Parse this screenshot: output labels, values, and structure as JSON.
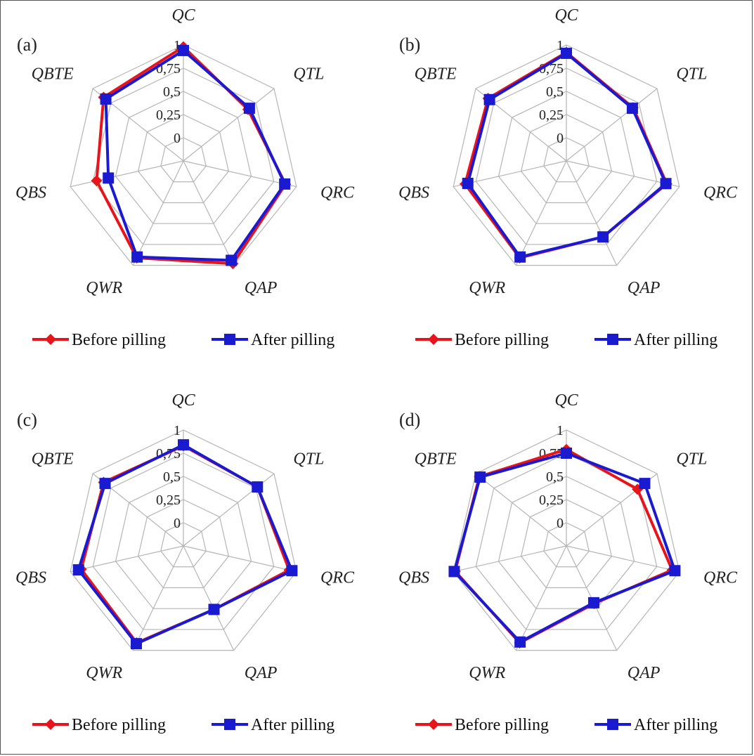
{
  "colors": {
    "before": "#e8141c",
    "after": "#1a1ad0",
    "grid": "#b5b5b5"
  },
  "chart_data": [
    {
      "type": "radar",
      "panel": "(a)",
      "categories": [
        "QC",
        "QTL",
        "QRC",
        "QAP",
        "QWR",
        "QBS",
        "QBTE"
      ],
      "ticks": [
        "0",
        "0,25",
        "0,5",
        "0,75",
        "1"
      ],
      "ylim": [
        0,
        1
      ],
      "grid": true,
      "legend_position": "bottom",
      "series": [
        {
          "name": "Before pilling",
          "marker": "diamond",
          "values": [
            0.98,
            0.64,
            0.88,
            0.98,
            0.91,
            0.71,
            0.85
          ]
        },
        {
          "name": "After pilling",
          "marker": "square",
          "values": [
            0.94,
            0.66,
            0.87,
            0.94,
            0.9,
            0.58,
            0.82
          ]
        }
      ]
    },
    {
      "type": "radar",
      "panel": "(b)",
      "categories": [
        "QC",
        "QTL",
        "QRC",
        "QAP",
        "QWR",
        "QBS",
        "QBTE"
      ],
      "ticks": [
        "0",
        "0,25",
        "0,5",
        "0,75",
        "1"
      ],
      "ylim": [
        0,
        1
      ],
      "grid": true,
      "legend_position": "bottom",
      "series": [
        {
          "name": "Before pilling",
          "marker": "diamond",
          "values": [
            0.92,
            0.67,
            0.86,
            0.66,
            0.91,
            0.87,
            0.83
          ]
        },
        {
          "name": "After pilling",
          "marker": "square",
          "values": [
            0.91,
            0.66,
            0.85,
            0.66,
            0.9,
            0.84,
            0.81
          ]
        }
      ]
    },
    {
      "type": "radar",
      "panel": "(c)",
      "categories": [
        "QC",
        "QTL",
        "QRC",
        "QAP",
        "QWR",
        "QBS",
        "QBTE"
      ],
      "ticks": [
        "0",
        "0,25",
        "0,5",
        "0,75",
        "1"
      ],
      "ylim": [
        0,
        1
      ],
      "grid": true,
      "legend_position": "bottom",
      "series": [
        {
          "name": "Before pilling",
          "marker": "diamond",
          "values": [
            0.83,
            0.77,
            0.92,
            0.51,
            0.91,
            0.88,
            0.85
          ]
        },
        {
          "name": "After pilling",
          "marker": "square",
          "values": [
            0.84,
            0.77,
            0.95,
            0.51,
            0.92,
            0.91,
            0.83
          ]
        }
      ]
    },
    {
      "type": "radar",
      "panel": "(d)",
      "categories": [
        "QC",
        "QTL",
        "QRC",
        "QAP",
        "QWR",
        "QBS",
        "QBTE"
      ],
      "ticks": [
        "0",
        "0,25",
        "0,5",
        "0,75",
        "1"
      ],
      "ylim": [
        0,
        1
      ],
      "grid": true,
      "legend_position": "bottom",
      "series": [
        {
          "name": "Before pilling",
          "marker": "diamond",
          "values": [
            0.79,
            0.73,
            0.92,
            0.44,
            0.91,
            0.98,
            0.95
          ]
        },
        {
          "name": "After pilling",
          "marker": "square",
          "values": [
            0.75,
            0.83,
            0.95,
            0.43,
            0.9,
            0.99,
            0.94
          ]
        }
      ]
    }
  ]
}
